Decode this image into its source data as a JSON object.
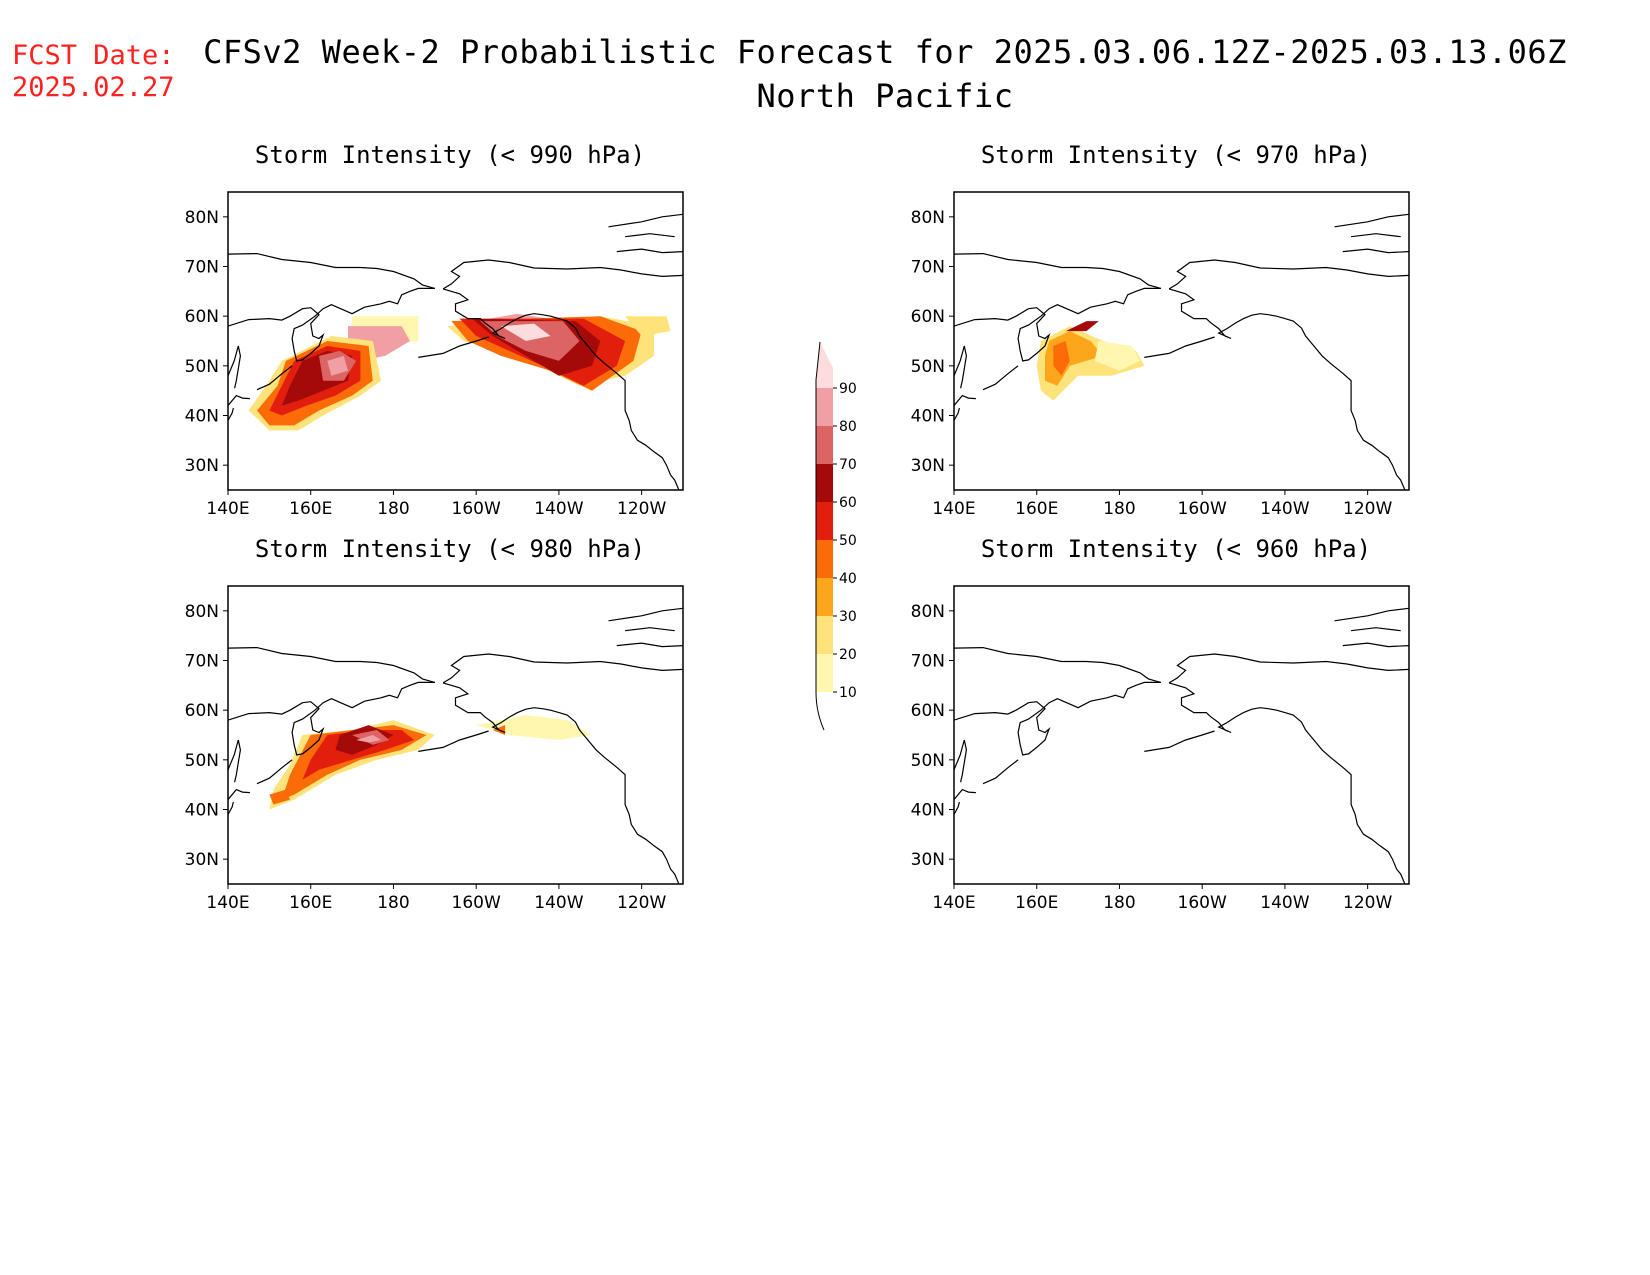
{
  "header": {
    "fcst_label": "FCST Date:",
    "fcst_date": "2025.02.27",
    "title_line1": "CFSv2 Week-2 Probabilistic Forecast for 2025.03.06.12Z-2025.03.13.06Z",
    "title_line2": "North Pacific"
  },
  "map_axes": {
    "lon_ticks": [
      "140E",
      "160E",
      "180",
      "160W",
      "140W",
      "120W"
    ],
    "lat_ticks": [
      "80N",
      "70N",
      "60N",
      "50N",
      "40N",
      "30N"
    ],
    "lon_range_deg_east": [
      140,
      250
    ],
    "lat_range": [
      25,
      85
    ]
  },
  "panels": [
    {
      "id": "p990",
      "title": "Storm Intensity (< 990 hPa)"
    },
    {
      "id": "p970",
      "title": "Storm Intensity (< 970 hPa)"
    },
    {
      "id": "p980",
      "title": "Storm Intensity (< 980 hPa)"
    },
    {
      "id": "p960",
      "title": "Storm Intensity (< 960 hPa)"
    }
  ],
  "colorbar": {
    "levels": [
      "10",
      "20",
      "30",
      "40",
      "50",
      "60",
      "70",
      "80",
      "90"
    ],
    "colors": [
      "#fff7b0",
      "#fde37a",
      "#fca61c",
      "#fb6c08",
      "#e21e0c",
      "#a50a0a",
      "#dc6464",
      "#f0a0a4",
      "#fcdcdc"
    ]
  }
}
